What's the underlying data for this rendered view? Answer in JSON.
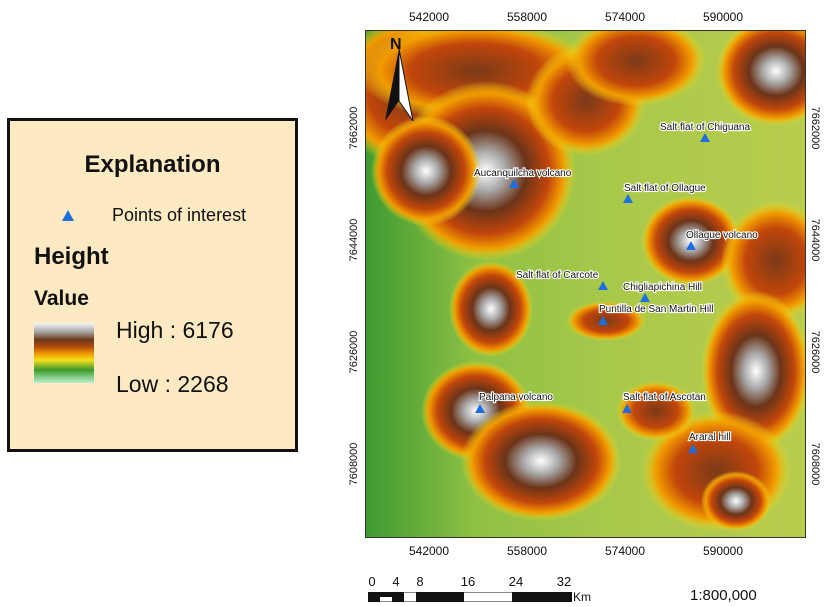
{
  "legend": {
    "title": "Explanation",
    "points_label": "Points of interest",
    "height_title": "Height",
    "value_title": "Value",
    "high_label": "High : 6176",
    "low_label": "Low : 2268",
    "point_color": "#1d6fe0"
  },
  "map": {
    "north_label": "N",
    "x_ticks": [
      "542000",
      "558000",
      "574000",
      "590000"
    ],
    "y_ticks_left": [
      "7662000",
      "7644000",
      "7626000",
      "7608000"
    ],
    "y_ticks_right": [
      "7662000",
      "7644000",
      "7626000",
      "7608000"
    ],
    "points": [
      {
        "name": "Salt flat of Chiguana"
      },
      {
        "name": "Aucanquilcha volcano"
      },
      {
        "name": "Salt flat of Ollague"
      },
      {
        "name": "Ollague volcano"
      },
      {
        "name": "Salt flat of Carcote"
      },
      {
        "name": "Chigliapichina Hill"
      },
      {
        "name": "Puntilla de San Martin Hill"
      },
      {
        "name": "Palpana volcano"
      },
      {
        "name": "Salt flat of Ascotan"
      },
      {
        "name": "Araral hill"
      }
    ]
  },
  "scale": {
    "numbers": [
      "0",
      "4",
      "8",
      "16",
      "24",
      "32"
    ],
    "unit": "Km",
    "ratio": "1:800,000"
  }
}
